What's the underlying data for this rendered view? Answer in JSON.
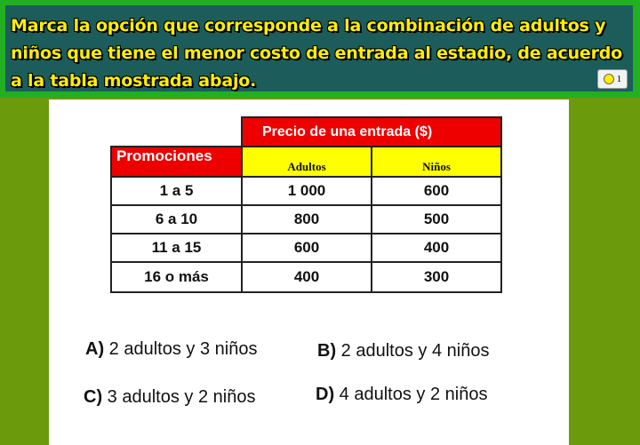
{
  "question": "Marca la opción que corresponde a la combinación de adultos y niños que tiene el menor costo de entrada al estadio, de acuerdo a la tabla mostrada abajo.",
  "counter": "1",
  "table": {
    "price_header": "Precio de una entrada ($)",
    "promo_header": "Promociones",
    "adults_header": "Adultos",
    "kids_header": "Niños",
    "rows": [
      {
        "promo": "1 a 5",
        "adults": "1 000",
        "kids": "600"
      },
      {
        "promo": "6 a 10",
        "adults": "800",
        "kids": "500"
      },
      {
        "promo": "11 a 15",
        "adults": "600",
        "kids": "400"
      },
      {
        "promo": "16 o más",
        "adults": "400",
        "kids": "300"
      }
    ]
  },
  "options": [
    {
      "letter": "A)",
      "text": "2 adultos y 3 niños"
    },
    {
      "letter": "B)",
      "text": "2 adultos y 4 niños"
    },
    {
      "letter": "C)",
      "text": "3 adultos y 2 niños"
    },
    {
      "letter": "D)",
      "text": "4 adultos y 2 niños"
    }
  ]
}
